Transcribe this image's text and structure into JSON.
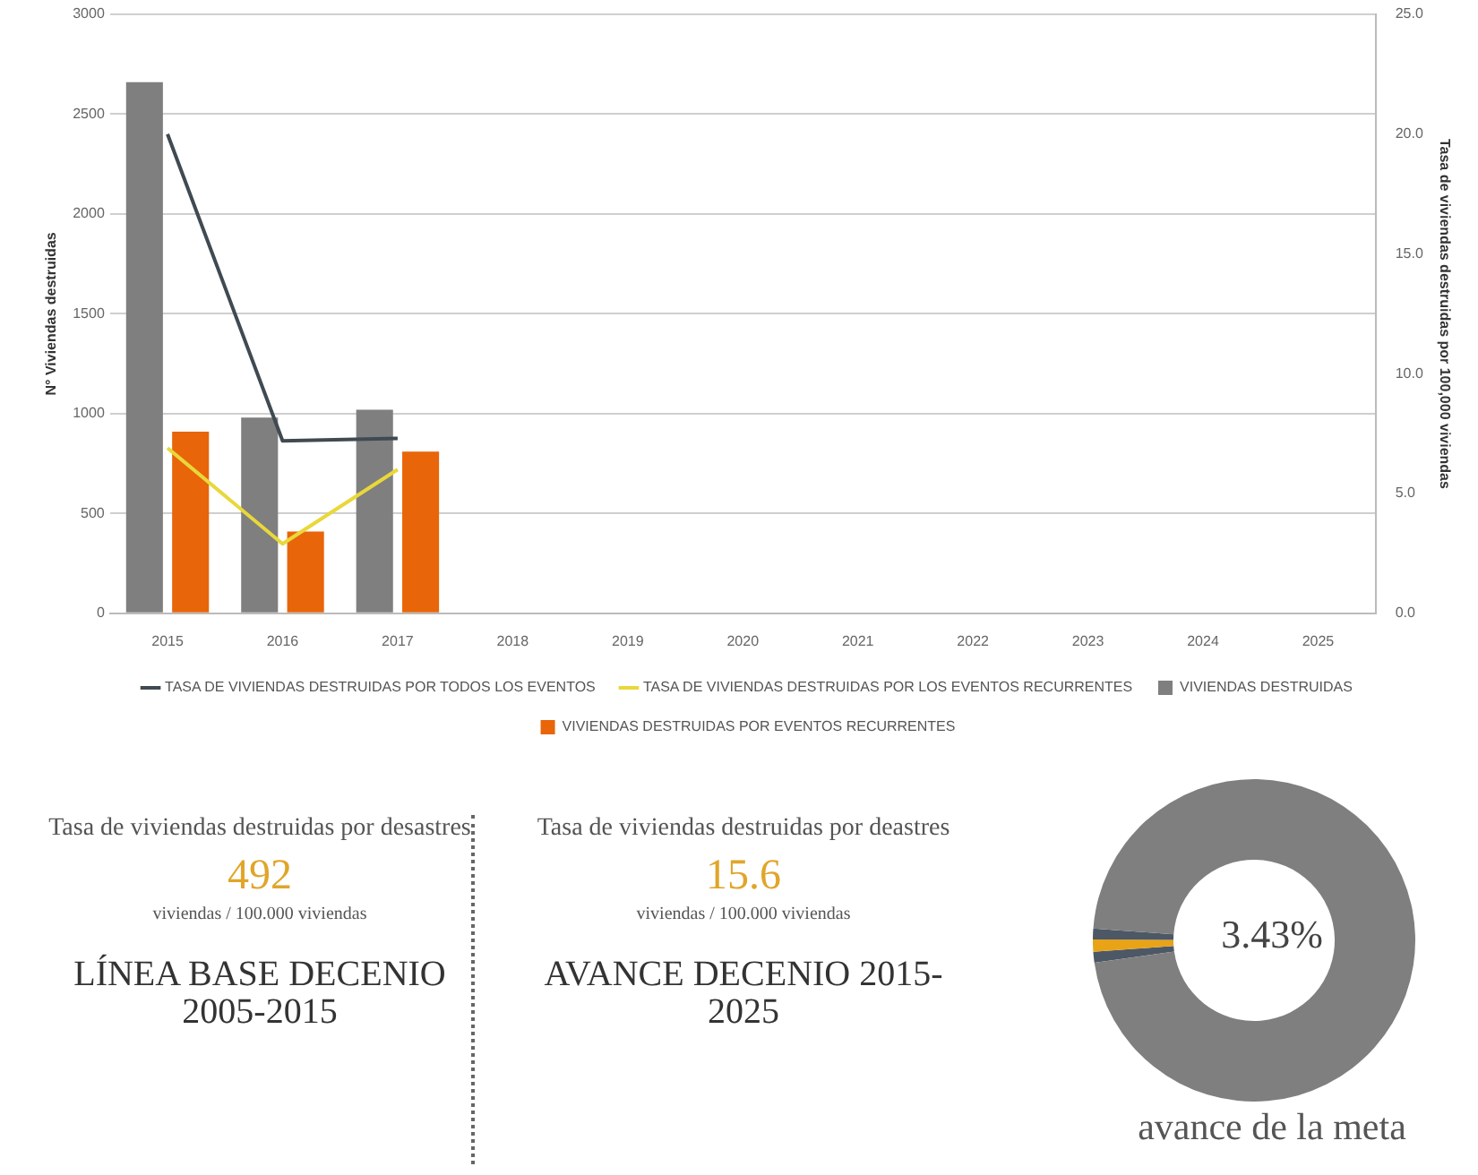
{
  "chart_data": [
    {
      "type": "bar",
      "categories": [
        "2015",
        "2016",
        "2017",
        "2018",
        "2019",
        "2020",
        "2021",
        "2022",
        "2023",
        "2024",
        "2025"
      ],
      "series": [
        {
          "name": "VIVIENDAS DESTRUIDAS",
          "color": "#7f7f7f",
          "values": [
            2660,
            980,
            1020,
            null,
            null,
            null,
            null,
            null,
            null,
            null,
            null
          ]
        },
        {
          "name": "VIVIENDAS DESTRUIDAS POR EVENTOS RECURRENTES",
          "color": "#e8650a",
          "values": [
            910,
            410,
            810,
            null,
            null,
            null,
            null,
            null,
            null,
            null,
            null
          ]
        },
        {
          "type": "line",
          "axis": "y2",
          "name": "TASA DE VIVIENDAS DESTRUIDAS POR TODOS LOS EVENTOS",
          "color": "#404a52",
          "values": [
            20.0,
            7.2,
            7.3,
            null,
            null,
            null,
            null,
            null,
            null,
            null,
            null
          ]
        },
        {
          "type": "line",
          "axis": "y2",
          "name": "TASA DE VIVIENDAS DESTRUIDAS POR LOS EVENTOS RECURRENTES",
          "color": "#e8d83a",
          "values": [
            6.9,
            2.9,
            6.0,
            null,
            null,
            null,
            null,
            null,
            null,
            null,
            null
          ]
        }
      ],
      "ylabel": "N° Viviendas destruidas",
      "y2label": "Tasa de viviendas destruidas por 100,000 viviendas",
      "ylim": [
        0,
        3000
      ],
      "yticks": [
        0,
        500,
        1000,
        1500,
        2000,
        2500,
        3000
      ],
      "y2lim": [
        0,
        25
      ],
      "y2ticks": [
        {
          "value": 0,
          "label": "0.0"
        },
        {
          "value": 5,
          "label": "5.0"
        },
        {
          "value": 10,
          "label": "10.0"
        },
        {
          "value": 15,
          "label": "15.0"
        },
        {
          "value": 20,
          "label": "20.0"
        },
        {
          "value": 25,
          "label": "25.0"
        }
      ],
      "grid": "y",
      "legend": "bottom",
      "marker": "none"
    },
    {
      "type": "other",
      "subtitle": "Tasa de viviendas destruidas por desastres",
      "annotations": [
        "492",
        "viviendas / 100.000 viviendas"
      ],
      "title": "LÍNEA BASE DECENIO 2005-2015"
    },
    {
      "type": "other",
      "subtitle": "Tasa de viviendas destruidas por deastres",
      "annotations": [
        "15.6",
        "viviendas / 100.000 viviendas"
      ],
      "title": "AVANCE DECENIO 2015-2025"
    },
    {
      "type": "donut",
      "categories": [
        null,
        null,
        null,
        null
      ],
      "values": [
        1.1,
        1.2,
        1.1,
        96.6
      ],
      "colors": [
        "#4d5866",
        "#e8a317",
        "#4d5866",
        "#7f7f7f"
      ],
      "annotations": [
        "3.43%"
      ],
      "title": "avance de la meta"
    }
  ]
}
